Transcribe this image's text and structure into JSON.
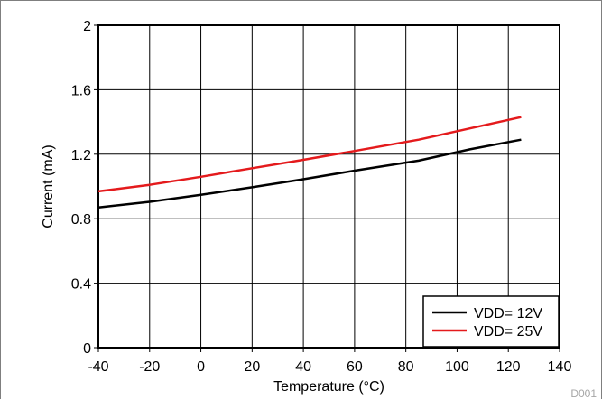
{
  "chart_data": {
    "type": "line",
    "title": "",
    "xlabel": "Temperature (°C)",
    "ylabel": "Current (mA)",
    "xlim": [
      -40,
      140
    ],
    "ylim": [
      0,
      2
    ],
    "x_ticks": [
      "-40",
      "-20",
      "0",
      "20",
      "40",
      "60",
      "80",
      "100",
      "120",
      "140"
    ],
    "y_ticks": [
      "0",
      "0.4",
      "0.8",
      "1.2",
      "1.6",
      "2"
    ],
    "x_tick_values": [
      -40,
      -20,
      0,
      20,
      40,
      60,
      80,
      100,
      120,
      140
    ],
    "y_tick_values": [
      0,
      0.4,
      0.8,
      1.2,
      1.6,
      2
    ],
    "grid": true,
    "legend_position": "bottom-right",
    "series": [
      {
        "name": "VDD= 12V",
        "color": "#000000",
        "x": [
          -40,
          -20,
          0,
          20,
          40,
          60,
          85,
          105,
          125
        ],
        "y": [
          0.87,
          0.905,
          0.948,
          0.995,
          1.045,
          1.098,
          1.16,
          1.23,
          1.29
        ]
      },
      {
        "name": "VDD= 25V",
        "color": "#e41a1c",
        "x": [
          -40,
          -20,
          0,
          20,
          40,
          60,
          85,
          105,
          125
        ],
        "y": [
          0.97,
          1.01,
          1.06,
          1.113,
          1.165,
          1.22,
          1.29,
          1.36,
          1.43
        ]
      }
    ],
    "figure_code": "D001"
  }
}
